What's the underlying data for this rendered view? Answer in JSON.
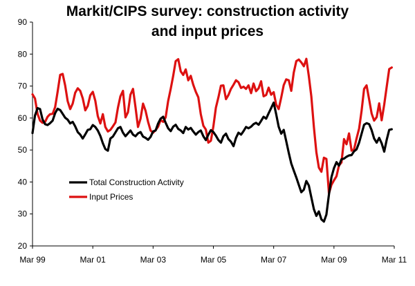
{
  "chart_data": {
    "type": "line",
    "title_lines": [
      "Markit/CIPS survey: construction activity",
      "and input prices"
    ],
    "xlabel": "",
    "ylabel": "",
    "ylim": [
      20,
      90
    ],
    "yticks": [
      20,
      30,
      40,
      50,
      60,
      70,
      80,
      90
    ],
    "x_tick_labels": [
      "Mar 99",
      "Mar 01",
      "Mar 03",
      "Mar 05",
      "Mar 07",
      "Mar 09",
      "Mar 11"
    ],
    "x_range_months": [
      "1999-03",
      "2011-03"
    ],
    "grid": false,
    "legend_position": "left-middle",
    "series": [
      {
        "name": "Total Construction Activity",
        "color": "#000000",
        "x_start": "1999-03",
        "values": [
          55.3,
          60.8,
          63.1,
          62.8,
          59.6,
          58.1,
          57.8,
          58.4,
          59.2,
          61.5,
          62.9,
          62.5,
          61.3,
          60.1,
          59.5,
          58.3,
          58.8,
          57.4,
          55.6,
          54.8,
          53.6,
          54.9,
          56.3,
          56.5,
          57.8,
          57.2,
          56.1,
          54.4,
          52.1,
          50.3,
          49.8,
          53.6,
          54.2,
          55.5,
          56.8,
          57.2,
          55.4,
          54.3,
          55.2,
          56.1,
          54.8,
          54.3,
          55.2,
          55.6,
          54.2,
          53.8,
          53.2,
          54.1,
          55.8,
          56.1,
          58.3,
          59.8,
          60.4,
          58.5,
          56.8,
          55.9,
          57.3,
          57.9,
          56.6,
          56.1,
          55.3,
          57.2,
          56.4,
          56.9,
          55.8,
          54.8,
          55.6,
          56.1,
          54.3,
          53.1,
          54.8,
          56.2,
          55.6,
          54.5,
          53.1,
          52.3,
          54.3,
          55.1,
          53.4,
          52.6,
          51.2,
          53.8,
          55.4,
          54.8,
          55.9,
          57.2,
          56.8,
          57.3,
          58.1,
          58.5,
          57.9,
          59.1,
          60.4,
          59.8,
          61.5,
          63.1,
          64.8,
          61.2,
          57.3,
          55.1,
          56.3,
          52.8,
          49.1,
          45.8,
          43.6,
          41.4,
          39.1,
          36.8,
          37.6,
          40.3,
          38.9,
          35.2,
          31.5,
          29.4,
          30.8,
          28.3,
          27.6,
          29.8,
          36.1,
          41.5,
          44.3,
          46.2,
          45.1,
          47.1,
          47.3,
          47.9,
          48.3,
          48.4,
          49.6,
          50.2,
          52.3,
          55.1,
          57.9,
          58.4,
          58.1,
          56.2,
          53.6,
          52.3,
          53.8,
          52.1,
          49.5,
          53.2,
          56.3,
          56.5
        ]
      },
      {
        "name": "Input Prices",
        "color": "#dd1111",
        "x_start": "1999-03",
        "values": [
          67.4,
          66.1,
          61.3,
          59.2,
          58.5,
          58.8,
          60.4,
          61.2,
          61.3,
          63.4,
          68.2,
          73.5,
          73.8,
          70.2,
          65.3,
          62.8,
          64.5,
          67.9,
          69.3,
          68.5,
          66.2,
          62.4,
          63.8,
          67.1,
          68.2,
          65.4,
          60.6,
          58.3,
          61.2,
          57.2,
          55.8,
          56.3,
          57.4,
          58.6,
          63.2,
          66.8,
          68.5,
          60.2,
          61.8,
          67.3,
          69.1,
          63.4,
          57.2,
          59.8,
          64.5,
          62.3,
          58.8,
          56.1,
          55.4,
          56.2,
          57.3,
          59.4,
          58.8,
          60.2,
          65.3,
          69.1,
          73.2,
          77.8,
          78.4,
          74.6,
          73.5,
          75.2,
          71.8,
          73.2,
          70.4,
          68.2,
          66.5,
          61.2,
          57.6,
          56.4,
          52.3,
          52.9,
          57.4,
          63.2,
          66.5,
          70.1,
          70.2,
          65.9,
          67.2,
          69.1,
          70.4,
          71.8,
          71.2,
          69.4,
          69.8,
          69.1,
          70.2,
          67.8,
          70.8,
          68.4,
          69.3,
          71.5,
          66.8,
          67.2,
          69.5,
          67.3,
          68.1,
          64.2,
          62.8,
          66.4,
          70.3,
          72.1,
          71.8,
          68.5,
          74.2,
          77.8,
          78.3,
          77.4,
          76.2,
          78.5,
          73.1,
          66.8,
          57.2,
          49.3,
          44.5,
          43.2,
          47.6,
          47.2,
          36.4,
          39.1,
          40.5,
          41.8,
          45.2,
          46.1,
          53.4,
          51.8,
          55.2,
          49.8,
          50.2,
          53.6,
          56.7,
          62.3,
          69.1,
          70.2,
          65.8,
          61.4,
          59.2,
          60.3,
          64.6,
          59.3,
          64.2,
          69.8,
          75.3,
          75.8
        ]
      }
    ]
  }
}
